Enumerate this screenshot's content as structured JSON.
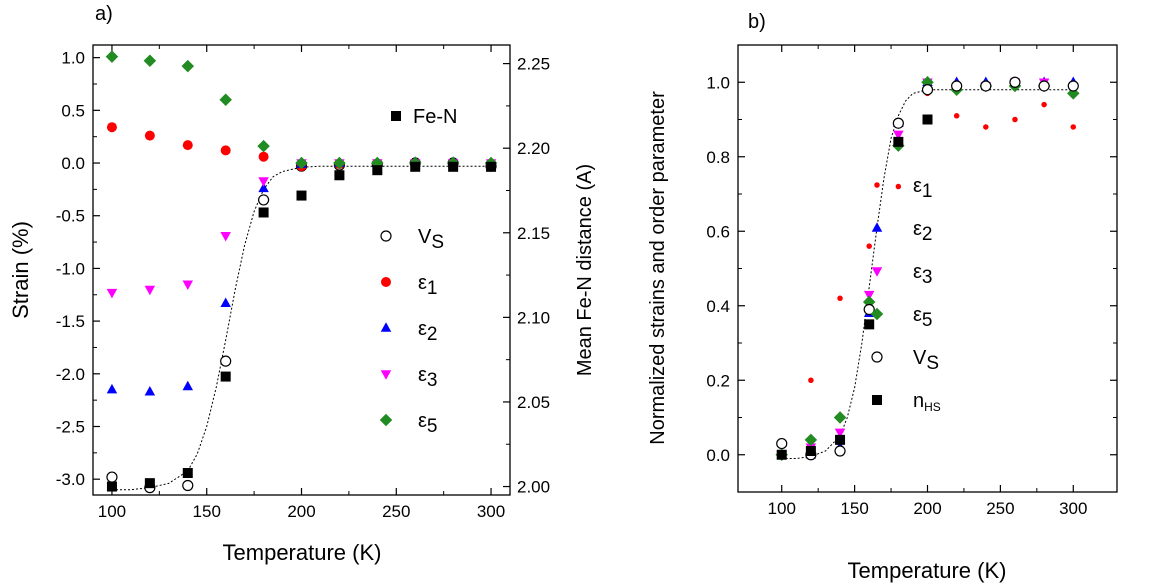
{
  "chart_data": [
    {
      "panel_label": "a)",
      "type": "scatter",
      "xlabel": "Temperature (K)",
      "ylabel": "Strain (%)",
      "y2label": "Mean Fe-N distance (A)",
      "xlim": [
        90,
        310
      ],
      "ylim": [
        -3.15,
        1.12
      ],
      "y2lim": [
        1.995,
        2.261
      ],
      "xticks": [
        100,
        150,
        200,
        250,
        300
      ],
      "yticks": [
        -3.0,
        -2.5,
        -2.0,
        -1.5,
        -1.0,
        -0.5,
        0.0,
        0.5,
        1.0
      ],
      "ytick_labels": [
        "-3.0",
        "-2.5",
        "-2.0",
        "-1.5",
        "-1.0",
        "-0.5",
        "0.0",
        "0.5",
        "1.0"
      ],
      "y2ticks": [
        2.0,
        2.05,
        2.1,
        2.15,
        2.2,
        2.25
      ],
      "y2tick_labels": [
        "2.00",
        "2.05",
        "2.10",
        "2.15",
        "2.20",
        "2.25"
      ],
      "legend_top": {
        "sym": "Fe-N",
        "sub": ""
      },
      "legend": [
        {
          "sym": "V",
          "sub": "S"
        },
        {
          "sym": "ε",
          "sub": "1"
        },
        {
          "sym": "ε",
          "sub": "2"
        },
        {
          "sym": "ε",
          "sub": "3"
        },
        {
          "sym": "ε",
          "sub": "5"
        }
      ],
      "series": [
        {
          "marker": "circle-open",
          "color": "#000000",
          "x": [
            100,
            120,
            140,
            160,
            180,
            200,
            220,
            240,
            260,
            280,
            300
          ],
          "y": [
            -2.98,
            -3.08,
            -3.06,
            -1.88,
            -0.35,
            -0.03,
            -0.02,
            -0.01,
            0.0,
            0.0,
            -0.03
          ]
        },
        {
          "marker": "circle",
          "color": "#ff0000",
          "x": [
            100,
            120,
            140,
            160,
            180,
            200,
            220,
            240,
            260,
            280,
            300
          ],
          "y": [
            0.34,
            0.26,
            0.17,
            0.12,
            0.06,
            -0.03,
            -0.01,
            -0.01,
            -0.02,
            -0.03,
            -0.03
          ]
        },
        {
          "marker": "triangle-up",
          "color": "#0000ff",
          "x": [
            100,
            120,
            140,
            160,
            180,
            200,
            220,
            240,
            260,
            280,
            300
          ],
          "y": [
            -2.15,
            -2.17,
            -2.12,
            -1.33,
            -0.24,
            -0.01,
            0.0,
            0.0,
            0.01,
            0.01,
            0.0
          ]
        },
        {
          "marker": "triangle-down",
          "color": "#ff00ff",
          "x": [
            100,
            120,
            140,
            160,
            180,
            200,
            220,
            240,
            260,
            280,
            300
          ],
          "y": [
            -1.23,
            -1.2,
            -1.15,
            -0.69,
            -0.17,
            0.0,
            0.0,
            0.0,
            0.0,
            0.0,
            0.0
          ]
        },
        {
          "marker": "diamond",
          "color": "#228b22",
          "x": [
            100,
            120,
            140,
            160,
            180,
            200,
            220,
            240,
            260,
            280,
            300
          ],
          "y": [
            1.01,
            0.97,
            0.92,
            0.6,
            0.16,
            0.0,
            0.0,
            0.0,
            0.0,
            0.0,
            0.0
          ]
        },
        {
          "marker": "square",
          "color": "#000000",
          "axis": "y2",
          "x": [
            100,
            120,
            140,
            160,
            180,
            200,
            220,
            240,
            260,
            280,
            300
          ],
          "y": [
            2.0,
            2.002,
            2.008,
            2.065,
            2.162,
            2.172,
            2.184,
            2.187,
            2.189,
            2.189,
            2.189
          ]
        }
      ],
      "fit_line": {
        "axis": "y",
        "x": [
          100,
          110,
          120,
          130,
          140,
          145,
          150,
          155,
          160,
          165,
          170,
          175,
          180,
          185,
          190,
          200,
          210,
          220,
          240,
          260,
          280,
          300
        ],
        "y": [
          -3.1,
          -3.1,
          -3.08,
          -3.04,
          -2.92,
          -2.76,
          -2.5,
          -2.13,
          -1.68,
          -1.2,
          -0.78,
          -0.46,
          -0.25,
          -0.13,
          -0.08,
          -0.04,
          -0.03,
          -0.03,
          -0.03,
          -0.03,
          -0.03,
          -0.03
        ]
      }
    },
    {
      "panel_label": "b)",
      "type": "scatter",
      "xlabel": "Temperature (K)",
      "ylabel": "Normalized strains and order parameter",
      "xlim": [
        70,
        330
      ],
      "ylim": [
        -0.1,
        1.1
      ],
      "xticks": [
        100,
        150,
        200,
        250,
        300
      ],
      "yticks": [
        0.0,
        0.2,
        0.4,
        0.6,
        0.8,
        1.0
      ],
      "ytick_labels": [
        "0.0",
        "0.2",
        "0.4",
        "0.6",
        "0.8",
        "1.0"
      ],
      "legend": [
        {
          "sym": "ε",
          "sub": "1"
        },
        {
          "sym": "ε",
          "sub": "2"
        },
        {
          "sym": "ε",
          "sub": "3"
        },
        {
          "sym": "ε",
          "sub": "5"
        },
        {
          "sym": "V",
          "sub": "S"
        },
        {
          "sym": "n",
          "sub": "HS"
        }
      ],
      "series": [
        {
          "marker": "dot",
          "color": "#ff0000",
          "x": [
            100,
            120,
            140,
            160,
            180,
            200,
            220,
            240,
            260,
            280,
            300
          ],
          "y": [
            0.0,
            0.2,
            0.42,
            0.56,
            0.72,
            0.97,
            0.91,
            0.88,
            0.9,
            0.94,
            0.88
          ]
        },
        {
          "marker": "triangle-up",
          "color": "#0000ff",
          "x": [
            100,
            120,
            140,
            160,
            180,
            200,
            220,
            240,
            260,
            280,
            300
          ],
          "y": [
            0.0,
            0.0,
            0.02,
            0.38,
            0.89,
            1.0,
            1.0,
            1.0,
            1.0,
            1.0,
            1.0
          ]
        },
        {
          "marker": "triangle-down",
          "color": "#ff00ff",
          "x": [
            100,
            120,
            140,
            160,
            180,
            200,
            220,
            240,
            260,
            280,
            300
          ],
          "y": [
            0.0,
            0.02,
            0.06,
            0.43,
            0.86,
            1.0,
            0.98,
            0.99,
            1.0,
            1.0,
            0.98
          ]
        },
        {
          "marker": "diamond",
          "color": "#228b22",
          "x": [
            100,
            120,
            140,
            160,
            180,
            200,
            220,
            240,
            260,
            280,
            300
          ],
          "y": [
            0.0,
            0.04,
            0.1,
            0.41,
            0.83,
            1.0,
            0.98,
            0.99,
            0.99,
            0.99,
            0.97
          ]
        },
        {
          "marker": "circle-open",
          "color": "#000000",
          "x": [
            100,
            120,
            140,
            160,
            180,
            200,
            220,
            240,
            260,
            280,
            300
          ],
          "y": [
            0.03,
            0.0,
            0.01,
            0.39,
            0.89,
            0.98,
            0.99,
            0.99,
            1.0,
            0.99,
            0.99
          ]
        },
        {
          "marker": "square",
          "color": "#000000",
          "x": [
            100,
            120,
            140,
            160,
            180,
            200
          ],
          "y": [
            0.0,
            0.01,
            0.04,
            0.35,
            0.84,
            0.9
          ]
        }
      ],
      "fit_line": {
        "axis": "y",
        "x": [
          100,
          110,
          120,
          130,
          140,
          145,
          150,
          155,
          160,
          165,
          170,
          175,
          180,
          185,
          190,
          200,
          210,
          220,
          240,
          260,
          280,
          300
        ],
        "y": [
          -0.01,
          -0.01,
          -0.005,
          0.01,
          0.05,
          0.1,
          0.18,
          0.3,
          0.45,
          0.6,
          0.74,
          0.85,
          0.91,
          0.95,
          0.97,
          0.98,
          0.98,
          0.98,
          0.98,
          0.98,
          0.98,
          0.98
        ]
      }
    }
  ]
}
